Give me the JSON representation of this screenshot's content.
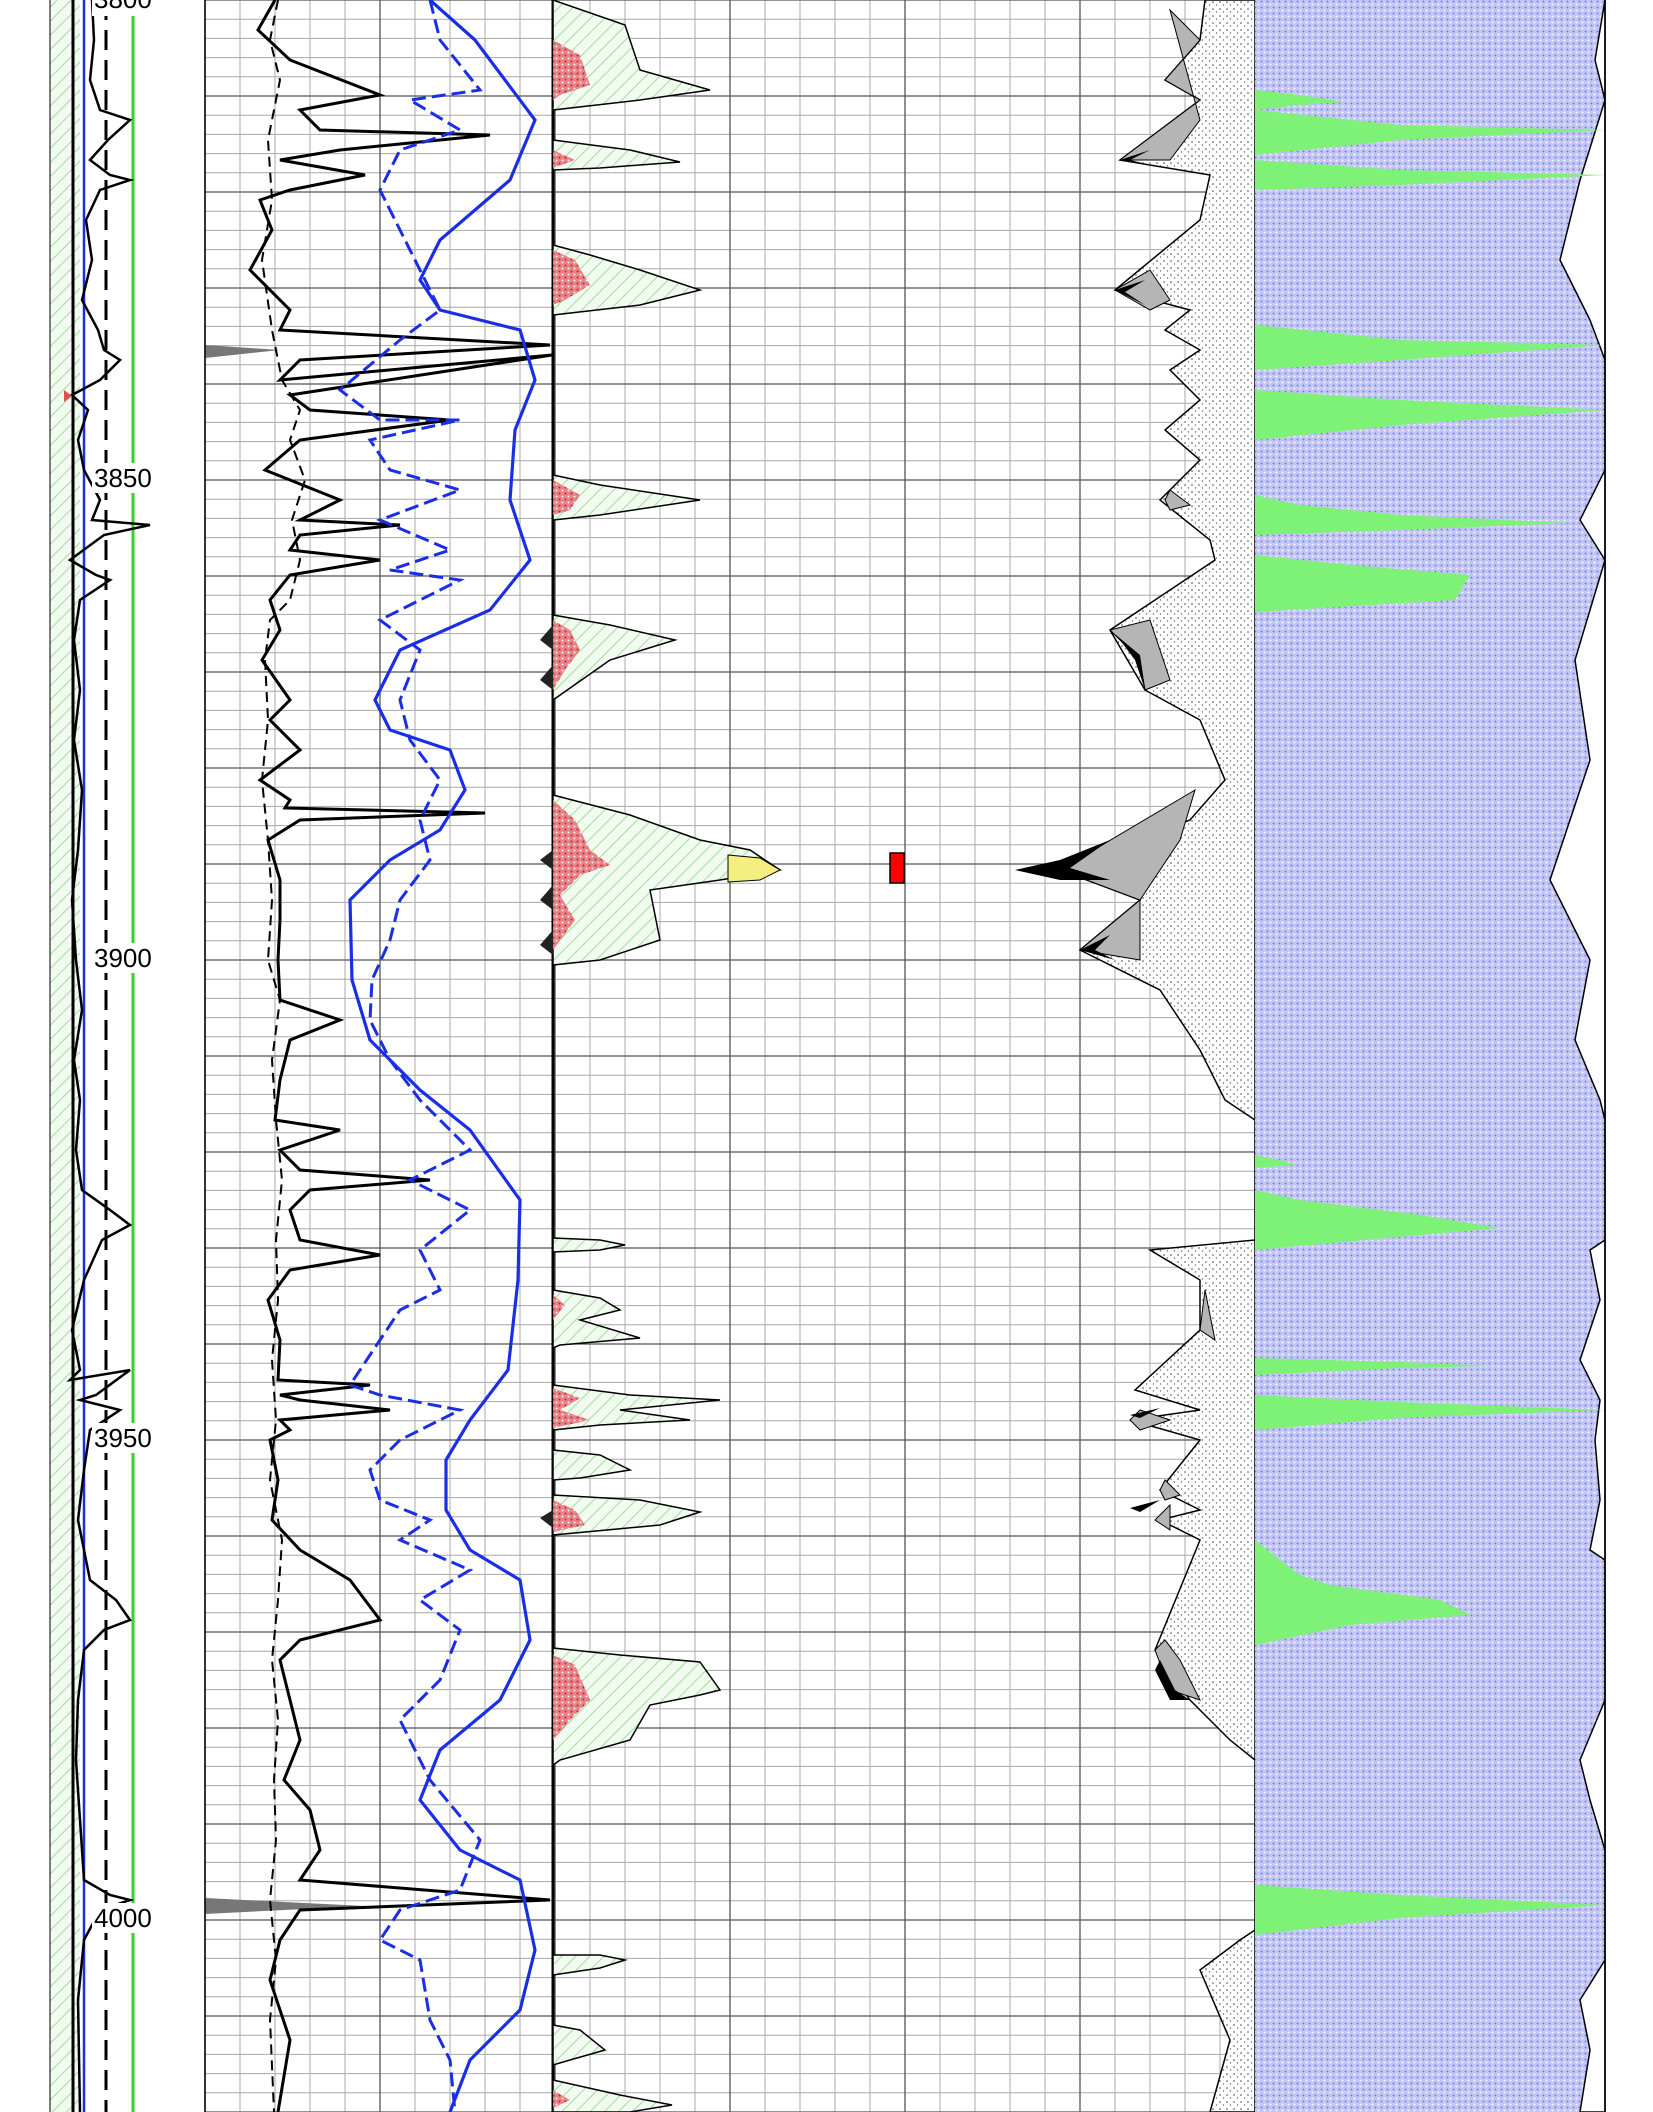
{
  "log_view": {
    "depth_labels": [
      "3800",
      "3850",
      "3900",
      "3950",
      "4000"
    ],
    "colors": {
      "grid": "#9a9a9a",
      "grid_major": "#6c6c6c",
      "track_border": "#000000",
      "curve_black": "#000000",
      "curve_blue": "#1a2ee6",
      "green_line": "#35d12a",
      "hatch_green": "#7ccf72",
      "red_fill": "#e0666a",
      "yellow_fill": "#f5ef82",
      "marker_red": "#ff0000",
      "gray_fill": "#b5b5b5",
      "lavender_fill": "#bcc0f4",
      "bright_green_fill": "#7df277"
    }
  }
}
